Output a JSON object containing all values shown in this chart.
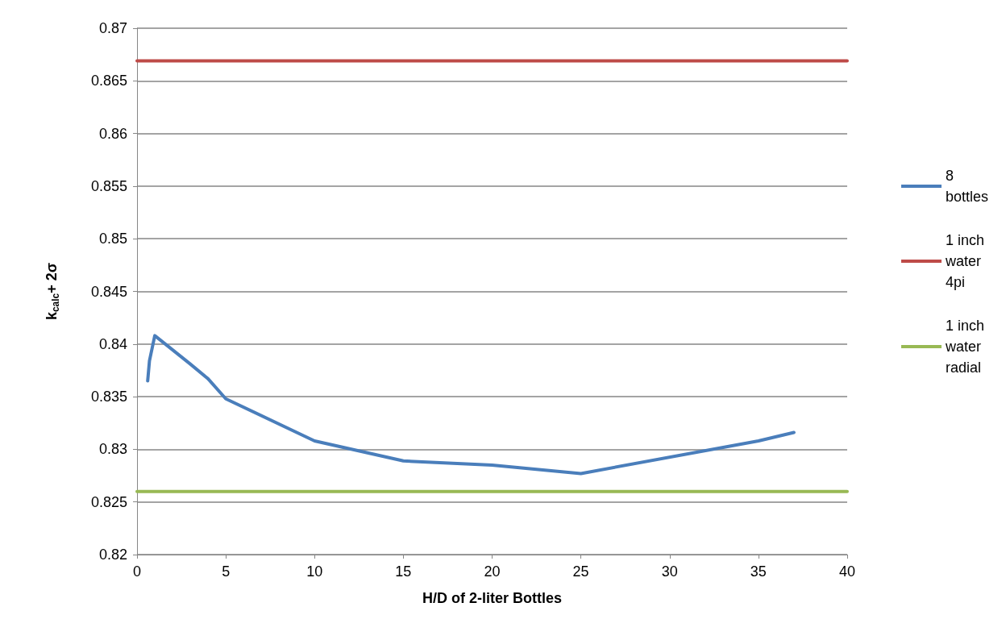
{
  "chart_data": {
    "type": "line",
    "xlabel": "H/D of 2-liter Bottles",
    "ylabel": "k$_{calc}$+ 2σ",
    "xlim": [
      0,
      40
    ],
    "xticks": [
      0,
      5,
      10,
      15,
      20,
      25,
      30,
      35,
      40
    ],
    "ylim": [
      0.82,
      0.87
    ],
    "yticks": [
      0.82,
      0.825,
      0.83,
      0.835,
      0.84,
      0.845,
      0.85,
      0.855,
      0.86,
      0.865,
      0.87
    ],
    "grid": "y",
    "legend": "right",
    "marker": "none",
    "line_style": "solid",
    "series": [
      {
        "name": "8 bottles",
        "color": "#4a7ebb",
        "x": [
          0.6,
          0.7,
          1,
          3,
          4,
          5,
          10,
          15,
          20,
          25,
          35,
          37
        ],
        "values": [
          0.8365,
          0.8384,
          0.8408,
          0.8381,
          0.8367,
          0.8348,
          0.8308,
          0.8289,
          0.8285,
          0.8277,
          0.8308,
          0.8316
        ]
      },
      {
        "name": "1 inch water 4pi",
        "color": "#be4b48",
        "x": [
          0,
          40
        ],
        "values": [
          0.8669,
          0.8669
        ]
      },
      {
        "name": "1 inch water radial",
        "color": "#98b954",
        "x": [
          0,
          40
        ],
        "values": [
          0.826,
          0.826
        ]
      }
    ]
  }
}
